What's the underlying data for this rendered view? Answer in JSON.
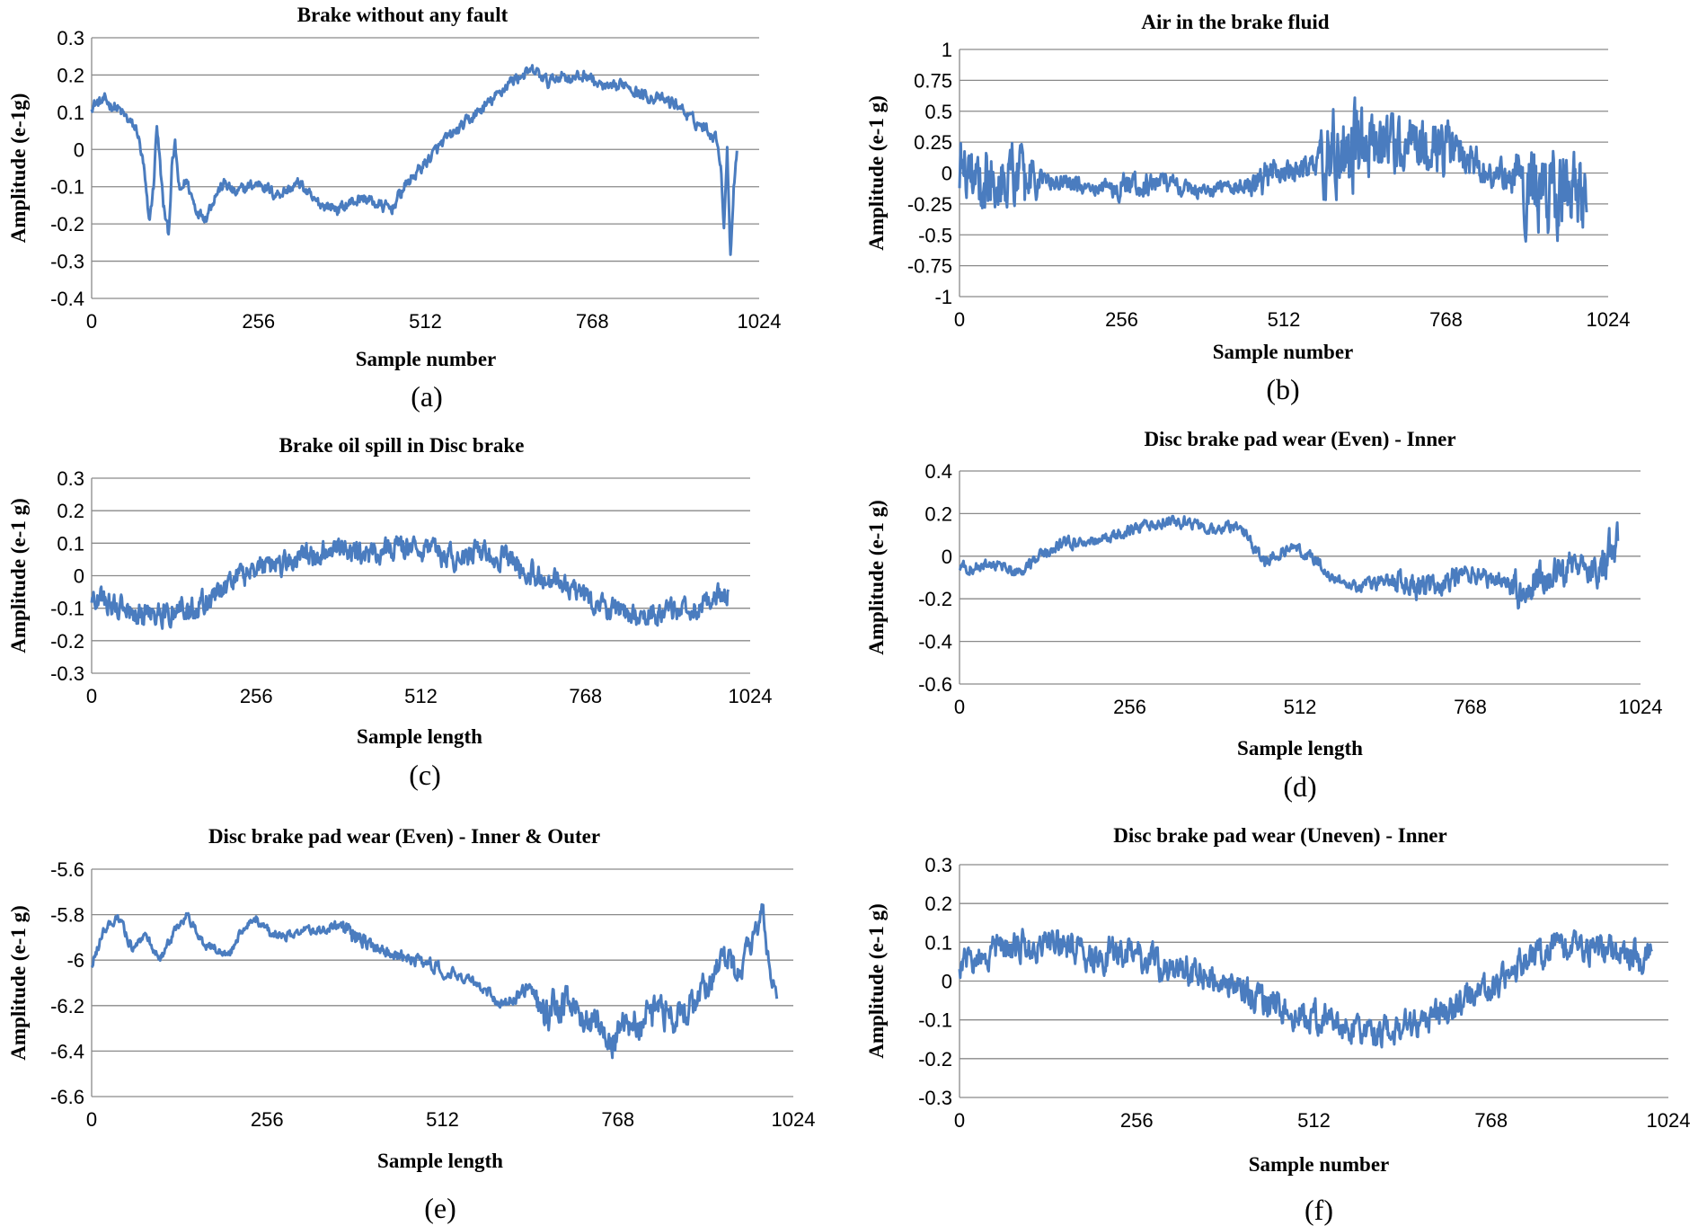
{
  "figure": {
    "series_color": "#4a7cbf",
    "grid_color": "#8a8a8a"
  },
  "chart_data": [
    {
      "type": "line",
      "panel": "(a)",
      "title": "Brake without any fault",
      "xlabel": "Sample number",
      "ylabel": "Amplitude (e-1g)",
      "xlim": [
        0,
        1024
      ],
      "ylim": [
        -0.4,
        0.3
      ],
      "xticks": [
        0,
        256,
        512,
        768,
        1024
      ],
      "xticklabels": [
        "0",
        "256",
        "512",
        "768",
        "1024"
      ],
      "yticks": [
        -0.4,
        -0.3,
        -0.2,
        -0.1,
        0,
        0.1,
        0.2,
        0.3
      ],
      "yticklabels": [
        "-0.4",
        "-0.3",
        "-0.2",
        "-0.1",
        "0",
        "0.1",
        "0.2",
        "0.3"
      ],
      "grid": true,
      "series": [
        {
          "name": "Brake without any fault",
          "noise": 0.018,
          "x": [
            0,
            20,
            40,
            55,
            70,
            80,
            88,
            95,
            100,
            110,
            118,
            123,
            128,
            135,
            145,
            160,
            175,
            190,
            205,
            220,
            240,
            260,
            280,
            300,
            320,
            340,
            360,
            380,
            400,
            420,
            440,
            460,
            480,
            500,
            520,
            540,
            560,
            580,
            600,
            620,
            640,
            660,
            680,
            700,
            720,
            740,
            760,
            780,
            800,
            820,
            840,
            860,
            880,
            900,
            920,
            940,
            960,
            965,
            970,
            975,
            980,
            985,
            990
          ],
          "values": [
            0.12,
            0.13,
            0.11,
            0.08,
            0.05,
            -0.05,
            -0.2,
            -0.1,
            0.07,
            -0.15,
            -0.23,
            -0.05,
            0.01,
            -0.12,
            -0.08,
            -0.16,
            -0.18,
            -0.12,
            -0.09,
            -0.12,
            -0.1,
            -0.09,
            -0.12,
            -0.11,
            -0.09,
            -0.14,
            -0.15,
            -0.16,
            -0.14,
            -0.13,
            -0.15,
            -0.16,
            -0.1,
            -0.06,
            -0.02,
            0.02,
            0.05,
            0.08,
            0.11,
            0.14,
            0.18,
            0.2,
            0.21,
            0.18,
            0.2,
            0.19,
            0.2,
            0.17,
            0.16,
            0.18,
            0.15,
            0.14,
            0.13,
            0.12,
            0.08,
            0.06,
            0.03,
            -0.05,
            -0.2,
            0.0,
            -0.28,
            -0.1,
            0.0
          ]
        }
      ]
    },
    {
      "type": "line",
      "panel": "(b)",
      "title": "Air in the brake fluid",
      "xlabel": "Sample number",
      "ylabel": "Amplitude (e-1 g)",
      "xlim": [
        0,
        1024
      ],
      "ylim": [
        -1,
        1
      ],
      "xticks": [
        0,
        256,
        512,
        768,
        1024
      ],
      "xticklabels": [
        "0",
        "256",
        "512",
        "768",
        "1024"
      ],
      "yticks": [
        -1,
        -0.75,
        -0.5,
        -0.25,
        0,
        0.25,
        0.5,
        0.75,
        1
      ],
      "yticklabels": [
        "-1",
        "-0.75",
        "-0.5",
        "-0.25",
        "0",
        "0.25",
        "0.5",
        "0.75",
        "1"
      ],
      "grid": true,
      "series": [
        {
          "name": "Air in the brake fluid",
          "noise": 0.15,
          "noise_env": {
            "x": [
              0,
              100,
              130,
              220,
              260,
              420,
              480,
              560,
              580,
              620,
              660,
              760,
              780,
              860,
              900,
              980,
              990
            ],
            "amp": [
              1.8,
              2.2,
              0.6,
              0.4,
              0.8,
              0.3,
              1.0,
              0.6,
              2.5,
              3.0,
              1.6,
              2.0,
              1.2,
              0.8,
              2.6,
              2.5,
              1.5
            ]
          },
          "x": [
            0,
            20,
            40,
            60,
            80,
            100,
            130,
            160,
            200,
            240,
            280,
            320,
            360,
            400,
            440,
            480,
            520,
            560,
            580,
            600,
            620,
            640,
            660,
            700,
            740,
            780,
            820,
            860,
            880,
            900,
            920,
            940,
            960,
            990
          ],
          "values": [
            0.05,
            0.0,
            -0.05,
            0.05,
            0.0,
            -0.1,
            -0.05,
            -0.08,
            -0.1,
            -0.12,
            -0.1,
            -0.08,
            -0.12,
            -0.13,
            -0.1,
            -0.05,
            0.0,
            0.05,
            0.1,
            0.15,
            0.15,
            0.15,
            0.18,
            0.2,
            0.22,
            0.15,
            0.05,
            0.0,
            0.0,
            -0.1,
            -0.15,
            -0.2,
            -0.15,
            -0.12
          ]
        }
      ]
    },
    {
      "type": "line",
      "panel": "(c)",
      "title": "Brake oil spill in Disc brake",
      "xlabel": "Sample length",
      "ylabel": "Amplitude (e-1 g)",
      "xlim": [
        0,
        1024
      ],
      "ylim": [
        -0.3,
        0.3
      ],
      "xticks": [
        0,
        256,
        512,
        768,
        1024
      ],
      "xticklabels": [
        "0",
        "256",
        "512",
        "768",
        "1024"
      ],
      "yticks": [
        -0.3,
        -0.2,
        -0.1,
        0,
        0.1,
        0.2,
        0.3
      ],
      "yticklabels": [
        "-0.3",
        "-0.2",
        "-0.1",
        "0",
        "0.1",
        "0.2",
        "0.3"
      ],
      "grid": true,
      "series": [
        {
          "name": "Brake oil spill in Disc brake",
          "noise": 0.04,
          "x": [
            0,
            40,
            80,
            120,
            160,
            200,
            240,
            280,
            320,
            360,
            400,
            440,
            480,
            520,
            560,
            600,
            640,
            680,
            720,
            760,
            800,
            840,
            880,
            920,
            960,
            990
          ],
          "values": [
            -0.06,
            -0.1,
            -0.12,
            -0.11,
            -0.1,
            -0.05,
            0.0,
            0.03,
            0.05,
            0.07,
            0.08,
            0.06,
            0.09,
            0.07,
            0.06,
            0.07,
            0.05,
            0.01,
            -0.02,
            -0.06,
            -0.1,
            -0.12,
            -0.12,
            -0.1,
            -0.08,
            -0.06
          ]
        }
      ]
    },
    {
      "type": "line",
      "panel": "(d)",
      "title": "Disc brake pad wear (Even) - Inner",
      "xlabel": "Sample length",
      "ylabel": "Amplitude (e-1 g)",
      "xlim": [
        0,
        1024
      ],
      "ylim": [
        -0.6,
        0.4
      ],
      "xticks": [
        0,
        256,
        512,
        768,
        1024
      ],
      "xticklabels": [
        "0",
        "256",
        "512",
        "768",
        "1024"
      ],
      "yticks": [
        -0.6,
        -0.4,
        -0.2,
        0,
        0.2,
        0.4
      ],
      "yticklabels": [
        "-0.6",
        "-0.4",
        "-0.2",
        "0",
        "0.2",
        "0.4"
      ],
      "grid": true,
      "series": [
        {
          "name": "Disc brake pad wear (Even) - Inner",
          "noise": 0.03,
          "noise_env": {
            "x": [
              0,
              600,
              660,
              720,
              820,
              840,
              900,
              940,
              960,
              990
            ],
            "amp": [
              1.0,
              1.0,
              2.2,
              2.2,
              1.5,
              3.5,
              3.0,
              2.0,
              4.0,
              4.0
            ]
          },
          "x": [
            0,
            30,
            60,
            80,
            100,
            130,
            160,
            200,
            240,
            280,
            310,
            340,
            380,
            400,
            420,
            440,
            460,
            480,
            500,
            530,
            560,
            600,
            640,
            680,
            720,
            760,
            800,
            840,
            880,
            920,
            960,
            990
          ],
          "values": [
            -0.05,
            -0.05,
            -0.04,
            -0.08,
            -0.05,
            0.02,
            0.07,
            0.07,
            0.1,
            0.15,
            0.16,
            0.16,
            0.12,
            0.13,
            0.15,
            0.05,
            -0.03,
            0.02,
            0.04,
            0.0,
            -0.1,
            -0.15,
            -0.1,
            -0.15,
            -0.12,
            -0.08,
            -0.1,
            -0.15,
            -0.1,
            -0.05,
            -0.05,
            0.05
          ]
        }
      ]
    },
    {
      "type": "line",
      "panel": "(e)",
      "title": "Disc brake pad wear (Even) - Inner & Outer",
      "xlabel": "Sample length",
      "ylabel": "Amplitude (e-1 g)",
      "xlim": [
        0,
        1024
      ],
      "ylim": [
        -6.6,
        -5.6
      ],
      "xticks": [
        0,
        256,
        512,
        768,
        1024
      ],
      "xticklabels": [
        "0",
        "256",
        "512",
        "768",
        "1024"
      ],
      "yticks": [
        -6.6,
        -6.4,
        -6.2,
        -6,
        -5.8,
        -5.6
      ],
      "yticklabels": [
        "-6.6",
        "-6.4",
        "-6.2",
        "-6",
        "-5.8",
        "-5.6"
      ],
      "grid": true,
      "series": [
        {
          "name": "Disc brake pad wear (Even) - Inner & Outer",
          "noise": 0.03,
          "noise_env": {
            "x": [
              0,
              350,
              380,
              420,
              640,
              660,
              720,
              780,
              990
            ],
            "amp": [
              0.8,
              0.8,
              1.8,
              1.0,
              1.0,
              3.5,
              2.5,
              3.0,
              2.0
            ]
          },
          "x": [
            0,
            20,
            40,
            60,
            80,
            100,
            120,
            140,
            160,
            180,
            200,
            220,
            240,
            260,
            280,
            300,
            320,
            350,
            380,
            400,
            440,
            480,
            520,
            560,
            600,
            640,
            660,
            700,
            740,
            760,
            780,
            800,
            840,
            880,
            920,
            940,
            960,
            980,
            990,
            1000
          ],
          "values": [
            -6.02,
            -5.85,
            -5.82,
            -5.95,
            -5.9,
            -6.0,
            -5.88,
            -5.8,
            -5.92,
            -5.95,
            -5.98,
            -5.87,
            -5.82,
            -5.88,
            -5.9,
            -5.88,
            -5.87,
            -5.85,
            -5.88,
            -5.92,
            -5.98,
            -6.0,
            -6.05,
            -6.1,
            -6.2,
            -6.12,
            -6.25,
            -6.2,
            -6.3,
            -6.35,
            -6.3,
            -6.25,
            -6.25,
            -6.2,
            -6.0,
            -6.05,
            -5.95,
            -5.78,
            -6.1,
            -6.2
          ]
        }
      ]
    },
    {
      "type": "line",
      "panel": "(f)",
      "title": "Disc brake pad wear (Uneven) - Inner",
      "xlabel": "Sample number",
      "ylabel": "Amplitude (e-1 g)",
      "xlim": [
        0,
        1024
      ],
      "ylim": [
        -0.3,
        0.3
      ],
      "xticks": [
        0,
        256,
        512,
        768,
        1024
      ],
      "xticklabels": [
        "0",
        "256",
        "512",
        "768",
        "1024"
      ],
      "yticks": [
        -0.3,
        -0.2,
        -0.1,
        0,
        0.1,
        0.2,
        0.3
      ],
      "yticklabels": [
        "-0.3",
        "-0.2",
        "-0.1",
        "0",
        "0.1",
        "0.2",
        "0.3"
      ],
      "grid": true,
      "series": [
        {
          "name": "Disc brake pad wear (Uneven) - Inner",
          "noise": 0.045,
          "x": [
            0,
            40,
            80,
            120,
            160,
            200,
            240,
            280,
            320,
            360,
            400,
            440,
            480,
            520,
            560,
            600,
            640,
            680,
            720,
            760,
            800,
            840,
            880,
            920,
            960,
            1000
          ],
          "values": [
            0.05,
            0.08,
            0.09,
            0.1,
            0.09,
            0.06,
            0.08,
            0.05,
            0.03,
            0.02,
            -0.02,
            -0.05,
            -0.08,
            -0.1,
            -0.12,
            -0.13,
            -0.12,
            -0.1,
            -0.07,
            -0.02,
            0.03,
            0.08,
            0.09,
            0.08,
            0.07,
            0.06
          ]
        }
      ]
    }
  ]
}
